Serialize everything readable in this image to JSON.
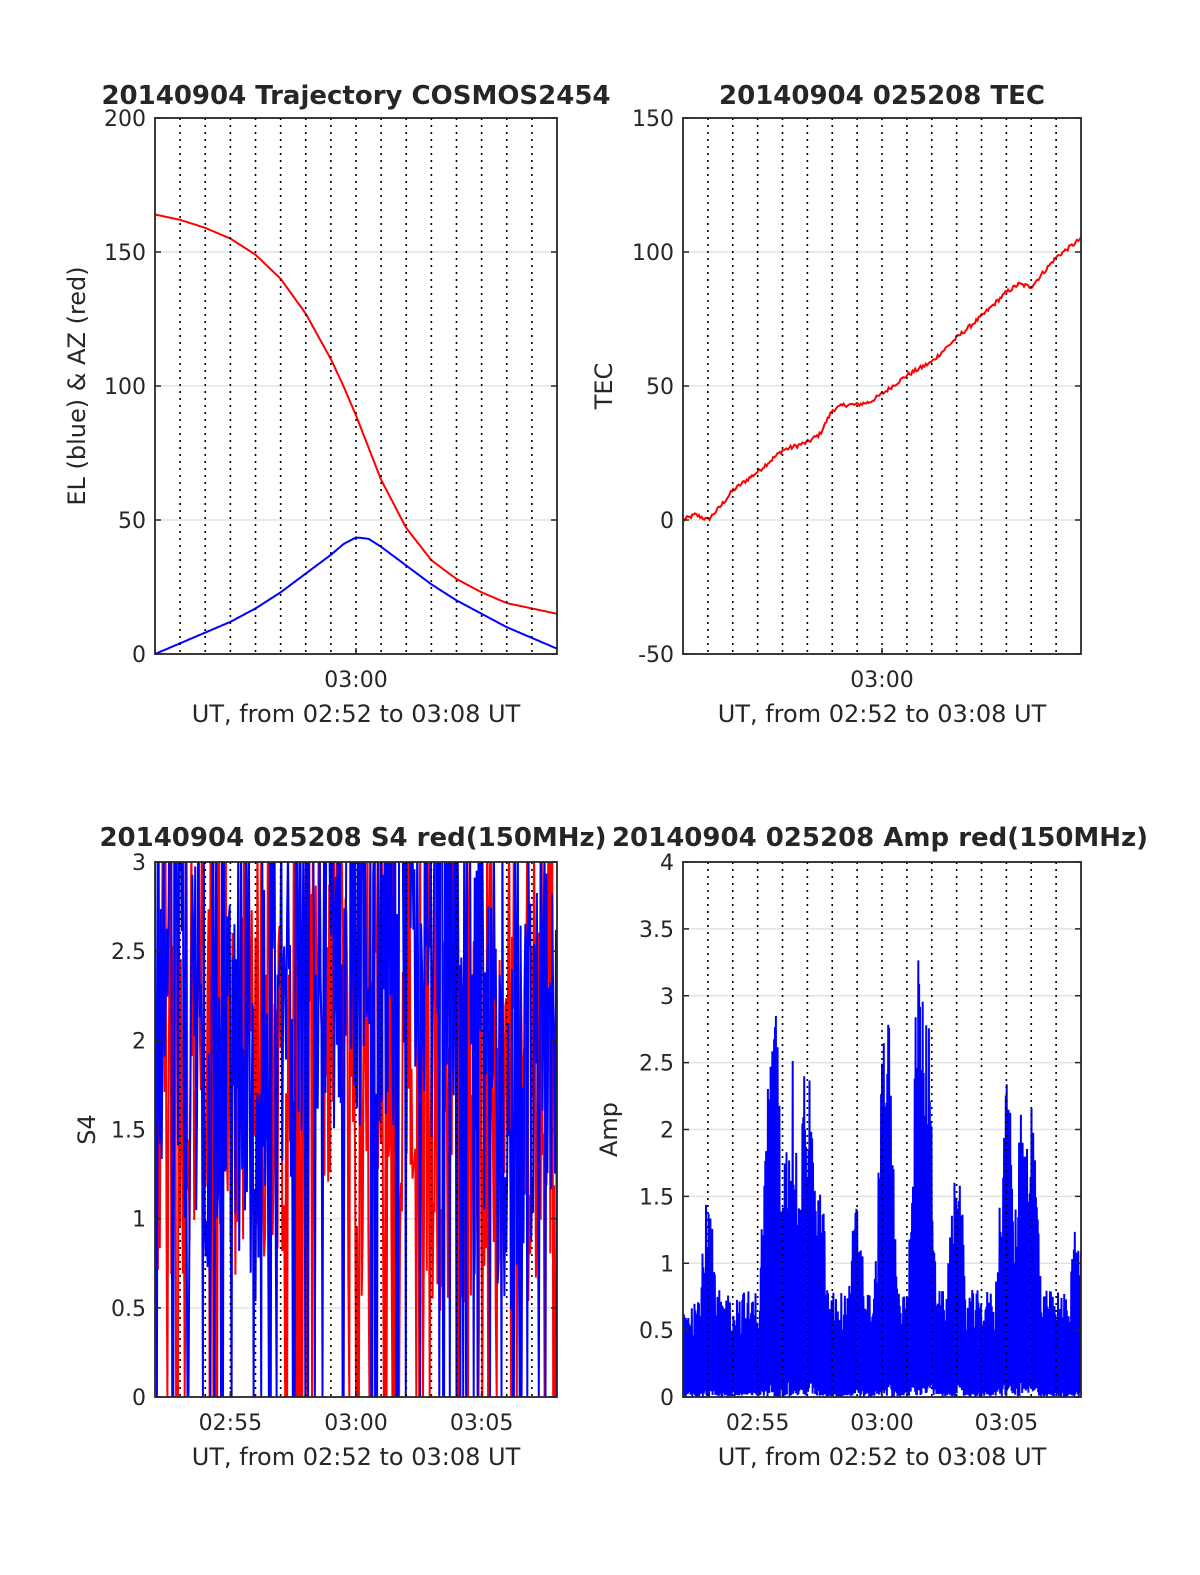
{
  "colors": {
    "el": "#0000ff",
    "az": "#ff0000",
    "tec": "#ff0000",
    "s4_red": "#ff0000",
    "s4_blue": "#0000ff",
    "amp": "#0000ff",
    "amp_red": "#ff0000",
    "grid": "#e3e3e3",
    "axis": "#262626"
  },
  "chart_data": [
    {
      "id": "trajectory",
      "type": "line",
      "title": "20140904 Trajectory COSMOS2454",
      "xlabel": "UT, from 02:52 to 03:08 UT",
      "ylabel": "EL (blue) & AZ (red)",
      "xlim": [
        "02:52",
        "03:08"
      ],
      "ylim": [
        0,
        200
      ],
      "yticks": [
        "0",
        "50",
        "100",
        "150",
        "200"
      ],
      "xticks": [
        {
          "t": "03:00",
          "label": "03:00"
        }
      ],
      "grid": "on",
      "series": [
        {
          "color": "#ff0000",
          "x": [
            "02:52",
            "02:53",
            "02:54",
            "02:55",
            "02:56",
            "02:57",
            "02:58",
            "02:59",
            "02:59:30",
            "03:00",
            "03:00:30",
            "03:01",
            "03:02",
            "03:03",
            "03:04",
            "03:05",
            "03:06",
            "03:07",
            "03:08"
          ],
          "y": [
            164,
            162,
            159,
            155,
            149,
            140,
            127,
            110,
            100,
            89,
            77,
            65,
            47,
            35,
            28,
            23,
            19,
            17,
            15
          ]
        },
        {
          "color": "#0000ff",
          "x": [
            "02:52",
            "02:53",
            "02:54",
            "02:55",
            "02:56",
            "02:57",
            "02:58",
            "02:59",
            "02:59:30",
            "03:00",
            "03:00:30",
            "03:01",
            "03:02",
            "03:03",
            "03:04",
            "03:05",
            "03:06",
            "03:07",
            "03:08"
          ],
          "y": [
            0,
            4,
            8,
            12,
            17,
            23,
            30,
            37,
            41,
            43.5,
            43,
            40,
            33,
            26,
            20,
            15,
            10,
            6,
            2
          ]
        }
      ]
    },
    {
      "id": "tec",
      "type": "line",
      "title": "20140904 025208 TEC",
      "xlabel": "UT, from 02:52 to 03:08 UT",
      "ylabel": "TEC",
      "xlim": [
        "02:52",
        "03:08"
      ],
      "ylim": [
        -50,
        150
      ],
      "yticks": [
        "-50",
        "0",
        "50",
        "100",
        "150"
      ],
      "xticks": [
        {
          "t": "03:00",
          "label": "03:00"
        }
      ],
      "grid": "on",
      "series": [
        {
          "color": "#ff0000",
          "x": [
            "02:52",
            "02:52:30",
            "02:53",
            "02:53:30",
            "02:54",
            "02:55",
            "02:56",
            "02:57",
            "02:57:30",
            "02:58",
            "02:58:30",
            "02:59",
            "02:59:30",
            "03:00",
            "03:01",
            "03:02",
            "03:03",
            "03:04",
            "03:05",
            "03:05:30",
            "03:06",
            "03:07",
            "03:08"
          ],
          "y": [
            0,
            2,
            0,
            5,
            11,
            18,
            26,
            29,
            32,
            41,
            43,
            43,
            44,
            47,
            54,
            59,
            68,
            76,
            85,
            88,
            87,
            98,
            105
          ]
        }
      ]
    },
    {
      "id": "s4",
      "type": "line",
      "title": "20140904 025208 S4 red(150MHz)",
      "xlabel": "UT, from 02:52 to 03:08 UT",
      "ylabel": "S4",
      "xlim": [
        "02:52",
        "03:08"
      ],
      "ylim": [
        0,
        3
      ],
      "yticks": [
        "0",
        "0.5",
        "1",
        "1.5",
        "2",
        "2.5",
        "3"
      ],
      "xticks": [
        {
          "t": "02:55",
          "label": "02:55"
        },
        {
          "t": "03:00",
          "label": "03:00"
        },
        {
          "t": "03:05",
          "label": "03:05"
        }
      ],
      "grid": "on",
      "series": [
        {
          "color": "#ff0000",
          "profile": {
            "x": [
              "02:52",
              "02:54",
              "02:56",
              "02:58",
              "03:00",
              "03:02",
              "03:04",
              "03:06",
              "03:08"
            ],
            "y": [
              1.7,
              1.8,
              1.7,
              2.1,
              1.6,
              1.5,
              1.6,
              1.6,
              1.6
            ]
          }
        },
        {
          "color": "#0000ff",
          "profile": {
            "x": [
              "02:52",
              "02:54",
              "02:56",
              "02:58",
              "03:00",
              "03:02",
              "03:04",
              "03:06",
              "03:08"
            ],
            "y": [
              2.5,
              1.8,
              1.6,
              2.6,
              2.6,
              2.5,
              2.6,
              1.5,
              2.0
            ]
          }
        }
      ]
    },
    {
      "id": "amp",
      "type": "line",
      "title": "20140904 025208 Amp red(150MHz)",
      "xlabel": "UT, from 02:52 to 03:08 UT",
      "ylabel": "Amp",
      "xlim": [
        "02:52",
        "03:08"
      ],
      "ylim": [
        0,
        4
      ],
      "yticks": [
        "0",
        "0.5",
        "1",
        "1.5",
        "2",
        "2.5",
        "3",
        "3.5",
        "4"
      ],
      "xticks": [
        {
          "t": "02:55",
          "label": "02:55"
        },
        {
          "t": "03:00",
          "label": "03:00"
        },
        {
          "t": "03:05",
          "label": "03:05"
        }
      ],
      "grid": "on",
      "series": [
        {
          "color": "#0000ff",
          "baseline": 0.8,
          "peaks": [
            {
              "x": "02:53",
              "y": 1.5
            },
            {
              "x": "02:55:30",
              "y": 2.5
            },
            {
              "x": "02:55:40",
              "y": 3.0
            },
            {
              "x": "02:56:20",
              "y": 2.6
            },
            {
              "x": "02:57",
              "y": 2.7
            },
            {
              "x": "02:57:30",
              "y": 1.6
            },
            {
              "x": "02:59",
              "y": 1.5
            },
            {
              "x": "03:00:10",
              "y": 3.0
            },
            {
              "x": "03:01:30",
              "y": 3.35
            },
            {
              "x": "03:01:45",
              "y": 3.1
            },
            {
              "x": "03:03",
              "y": 1.9
            },
            {
              "x": "03:05",
              "y": 2.45
            },
            {
              "x": "03:05:40",
              "y": 2.4
            },
            {
              "x": "03:06",
              "y": 2.3
            },
            {
              "x": "03:07:50",
              "y": 1.3
            }
          ]
        }
      ]
    }
  ]
}
